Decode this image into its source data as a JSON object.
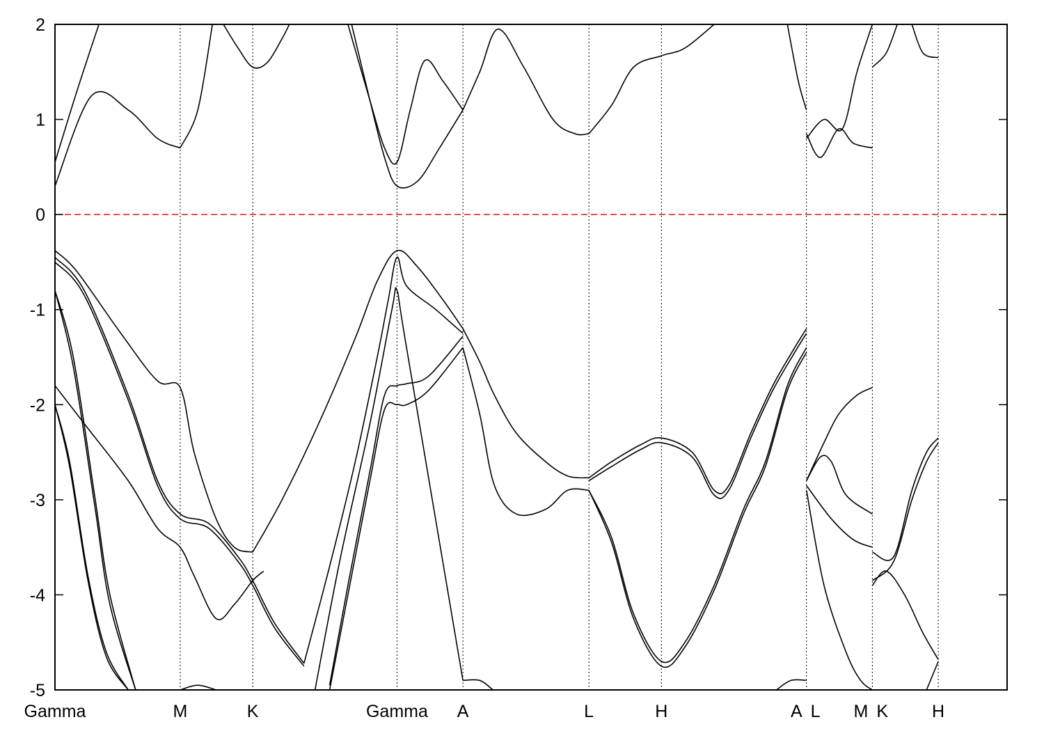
{
  "chart_data": {
    "type": "line",
    "title": "",
    "xlabel": "",
    "ylabel": "",
    "ylim": [
      -5,
      2
    ],
    "y_ticks": [
      2,
      1,
      0,
      -1,
      -2,
      -3,
      -4,
      -5
    ],
    "y_tick_labels": [
      "2",
      "1",
      "0",
      "-1",
      "-2",
      "-3",
      "-4",
      "-5"
    ],
    "x_range": [
      0,
      13
    ],
    "high_symmetry_points": [
      {
        "label": "Gamma",
        "x": 0
      },
      {
        "label": "M",
        "x": 1.71
      },
      {
        "label": "K",
        "x": 2.7
      },
      {
        "label": "Gamma",
        "x": 4.67
      },
      {
        "label": "A",
        "x": 5.57
      },
      {
        "label": "L",
        "x": 7.29
      },
      {
        "label": "H",
        "x": 8.28
      },
      {
        "label": "A",
        "x": 10.26
      },
      {
        "label": "L",
        "x": 10.26
      },
      {
        "label": "M",
        "x": 11.16
      },
      {
        "label": "K",
        "x": 11.16
      },
      {
        "label": "H",
        "x": 12.06
      }
    ],
    "fermi_level": {
      "y": 0,
      "color": "#e8251b",
      "style": "dashed"
    },
    "line_color": "#000000",
    "grid": false,
    "series": [
      {
        "x": [
          0,
          0.5,
          1.0,
          1.4,
          1.71
        ],
        "y": [
          0.3,
          1.25,
          1.1,
          0.8,
          0.7
        ]
      },
      {
        "x": [
          0,
          0.3,
          0.6
        ],
        "y": [
          0.55,
          1.3,
          2.0
        ]
      },
      {
        "x": [
          1.71,
          1.95,
          2.15
        ],
        "y": [
          0.7,
          1.1,
          2.0
        ]
      },
      {
        "x": [
          2.3,
          2.5,
          2.7,
          2.9,
          3.1,
          3.2
        ],
        "y": [
          2.0,
          1.75,
          1.55,
          1.6,
          1.85,
          2.0
        ]
      },
      {
        "x": [
          4.05,
          4.3,
          4.5,
          4.67,
          4.95,
          5.25,
          5.57
        ],
        "y": [
          2.0,
          1.2,
          0.6,
          0.3,
          0.35,
          0.7,
          1.1
        ]
      },
      {
        "x": [
          4.0,
          4.3,
          4.5,
          4.67,
          4.85,
          5.05,
          5.3,
          5.57
        ],
        "y": [
          2.0,
          1.2,
          0.7,
          0.55,
          1.1,
          1.62,
          1.4,
          1.1
        ]
      },
      {
        "x": [
          5.57,
          5.8,
          6.05,
          6.4,
          6.8,
          7.1,
          7.29
        ],
        "y": [
          1.1,
          1.5,
          1.95,
          1.55,
          1.0,
          0.85,
          0.85
        ]
      },
      {
        "x": [
          7.29,
          7.6,
          7.9,
          8.28,
          8.6,
          9.0
        ],
        "y": [
          0.85,
          1.15,
          1.55,
          1.67,
          1.75,
          2.0
        ]
      },
      {
        "x": [
          10.0,
          10.15,
          10.26
        ],
        "y": [
          2.0,
          1.4,
          1.1
        ]
      },
      {
        "x": [
          10.26,
          10.45,
          10.7,
          10.9,
          11.16
        ],
        "y": [
          0.85,
          0.6,
          0.9,
          0.75,
          0.7
        ]
      },
      {
        "x": [
          10.26,
          10.5,
          10.75,
          10.95,
          11.16
        ],
        "y": [
          0.8,
          1.0,
          0.9,
          1.5,
          2.0
        ]
      },
      {
        "x": [
          11.16,
          11.35,
          11.5
        ],
        "y": [
          1.55,
          1.7,
          2.0
        ]
      },
      {
        "x": [
          11.7,
          11.85,
          12.06
        ],
        "y": [
          2.0,
          1.7,
          1.65
        ]
      },
      {
        "x": [
          0,
          0.3,
          0.9,
          1.4,
          1.71,
          1.9,
          2.2,
          2.45,
          2.7
        ],
        "y": [
          -0.38,
          -0.6,
          -1.25,
          -1.75,
          -1.82,
          -2.5,
          -3.2,
          -3.5,
          -3.55
        ]
      },
      {
        "x": [
          2.7,
          3.1,
          3.6,
          4.1,
          4.4,
          4.67,
          4.95,
          5.3,
          5.57
        ],
        "y": [
          -3.55,
          -3.0,
          -2.2,
          -1.3,
          -0.7,
          -0.38,
          -0.55,
          -0.9,
          -1.2
        ]
      },
      {
        "x": [
          0,
          0.4,
          1.0,
          1.4,
          1.71,
          2.1,
          2.5,
          2.7,
          3.0,
          3.4
        ],
        "y": [
          -0.45,
          -0.8,
          -1.9,
          -2.8,
          -3.15,
          -3.25,
          -3.6,
          -3.85,
          -4.3,
          -4.72
        ]
      },
      {
        "x": [
          0,
          0.4,
          1.0,
          1.4,
          1.71,
          2.1,
          2.5,
          2.7,
          3.0,
          3.4
        ],
        "y": [
          -0.5,
          -0.85,
          -1.95,
          -2.85,
          -3.2,
          -3.3,
          -3.65,
          -3.9,
          -4.35,
          -4.75
        ]
      },
      {
        "x": [
          0,
          0.4,
          1.0,
          1.4,
          1.71,
          1.9,
          2.2,
          2.45,
          2.7,
          2.85
        ],
        "y": [
          -1.8,
          -2.2,
          -2.8,
          -3.3,
          -3.5,
          -3.8,
          -4.25,
          -4.1,
          -3.85,
          -3.75
        ]
      },
      {
        "x": [
          3.4,
          3.75,
          4.1,
          4.4,
          4.55,
          4.67,
          4.8,
          5.2,
          5.57
        ],
        "y": [
          -4.72,
          -3.7,
          -2.6,
          -1.5,
          -0.9,
          -0.45,
          -0.75,
          -1.0,
          -1.25
        ]
      },
      {
        "x": [
          3.55,
          3.9,
          4.3,
          4.6,
          4.67,
          4.8,
          5.57
        ],
        "y": [
          -5.0,
          -3.6,
          -2.2,
          -1.0,
          -0.8,
          -1.4,
          -4.9
        ]
      },
      {
        "x": [
          3.75,
          4.0,
          4.3,
          4.5,
          4.67,
          4.8,
          5.1,
          5.57
        ],
        "y": [
          -5.0,
          -4.0,
          -2.8,
          -2.05,
          -2.0,
          -2.0,
          -1.85,
          -1.4
        ]
      },
      {
        "x": [
          3.75,
          4.0,
          4.3,
          4.5,
          4.67,
          4.8,
          5.1,
          5.57
        ],
        "y": [
          -4.95,
          -3.9,
          -2.7,
          -1.9,
          -1.8,
          -1.78,
          -1.7,
          -1.28
        ]
      },
      {
        "x": [
          5.57,
          5.8,
          6.0,
          6.3,
          6.7,
          7.0,
          7.29
        ],
        "y": [
          -1.2,
          -1.55,
          -1.9,
          -2.3,
          -2.6,
          -2.75,
          -2.77
        ]
      },
      {
        "x": [
          5.57,
          5.8,
          6.0,
          6.3,
          6.7,
          7.0,
          7.29
        ],
        "y": [
          -1.4,
          -2.1,
          -2.85,
          -3.15,
          -3.1,
          -2.9,
          -2.9
        ]
      },
      {
        "x": [
          7.29,
          7.6,
          7.9,
          8.28,
          8.6,
          9.0,
          9.4,
          9.7,
          10.0,
          10.26
        ],
        "y": [
          -2.9,
          -3.4,
          -4.2,
          -4.7,
          -4.5,
          -3.9,
          -3.1,
          -2.6,
          -1.8,
          -1.4
        ]
      },
      {
        "x": [
          7.29,
          7.6,
          7.9,
          8.28,
          8.6,
          9.0,
          9.4,
          9.7,
          10.0,
          10.26
        ],
        "y": [
          -2.9,
          -3.45,
          -4.25,
          -4.75,
          -4.55,
          -3.95,
          -3.15,
          -2.65,
          -1.85,
          -1.45
        ]
      },
      {
        "x": [
          7.29,
          7.6,
          8.0,
          8.28,
          8.7,
          9.0,
          9.2,
          9.5,
          9.8,
          10.1,
          10.26
        ],
        "y": [
          -2.77,
          -2.6,
          -2.42,
          -2.35,
          -2.5,
          -2.9,
          -2.85,
          -2.3,
          -1.8,
          -1.4,
          -1.2
        ]
      },
      {
        "x": [
          7.29,
          7.6,
          8.0,
          8.28,
          8.7,
          9.0,
          9.2,
          9.5,
          9.8,
          10.1,
          10.26
        ],
        "y": [
          -2.8,
          -2.65,
          -2.47,
          -2.4,
          -2.55,
          -2.95,
          -2.9,
          -2.35,
          -1.85,
          -1.45,
          -1.25
        ]
      },
      {
        "x": [
          10.26,
          10.5,
          10.7,
          10.95,
          11.16
        ],
        "y": [
          -2.8,
          -2.4,
          -2.1,
          -1.9,
          -1.82
        ]
      },
      {
        "x": [
          10.26,
          10.45,
          10.6,
          10.8,
          11.16
        ],
        "y": [
          -2.8,
          -2.55,
          -2.6,
          -2.95,
          -3.15
        ]
      },
      {
        "x": [
          10.26,
          10.6,
          10.9,
          11.16
        ],
        "y": [
          -2.85,
          -3.2,
          -3.42,
          -3.5
        ]
      },
      {
        "x": [
          10.26,
          10.5,
          10.8,
          11.0,
          11.16
        ],
        "y": [
          -2.9,
          -3.9,
          -4.6,
          -4.9,
          -5.0
        ]
      },
      {
        "x": [
          11.16,
          11.45,
          11.7,
          11.9,
          12.06
        ],
        "y": [
          -3.55,
          -3.6,
          -2.9,
          -2.5,
          -2.35
        ]
      },
      {
        "x": [
          11.16,
          11.45,
          11.7,
          11.9,
          12.06
        ],
        "y": [
          -3.85,
          -3.65,
          -3.0,
          -2.6,
          -2.4
        ]
      },
      {
        "x": [
          11.16,
          11.35,
          11.6,
          11.85,
          12.06
        ],
        "y": [
          -3.9,
          -3.75,
          -4.0,
          -4.4,
          -4.68
        ]
      },
      {
        "x": [
          11.9,
          12.06
        ],
        "y": [
          -5.0,
          -4.7
        ]
      },
      {
        "x": [
          0,
          0.25,
          0.55,
          0.75,
          1.1
        ],
        "y": [
          -0.8,
          -1.5,
          -3.0,
          -4.0,
          -5.0
        ]
      },
      {
        "x": [
          0,
          0.25,
          0.55,
          0.75,
          1.1
        ],
        "y": [
          -0.8,
          -1.6,
          -3.1,
          -4.1,
          -5.0
        ]
      },
      {
        "x": [
          0,
          0.2,
          0.45,
          0.7,
          1.0
        ],
        "y": [
          -2.0,
          -2.6,
          -3.8,
          -4.6,
          -5.0
        ]
      },
      {
        "x": [
          0,
          0.2,
          0.45,
          0.7,
          1.0
        ],
        "y": [
          -2.0,
          -2.65,
          -3.85,
          -4.65,
          -5.0
        ]
      },
      {
        "x": [
          1.71,
          1.95,
          2.2
        ],
        "y": [
          -5.0,
          -4.95,
          -5.0
        ]
      },
      {
        "x": [
          5.57,
          5.8,
          5.98
        ],
        "y": [
          -4.9,
          -4.9,
          -5.0
        ]
      },
      {
        "x": [
          9.85,
          10.05,
          10.26
        ],
        "y": [
          -5.0,
          -4.9,
          -4.9
        ]
      }
    ]
  }
}
